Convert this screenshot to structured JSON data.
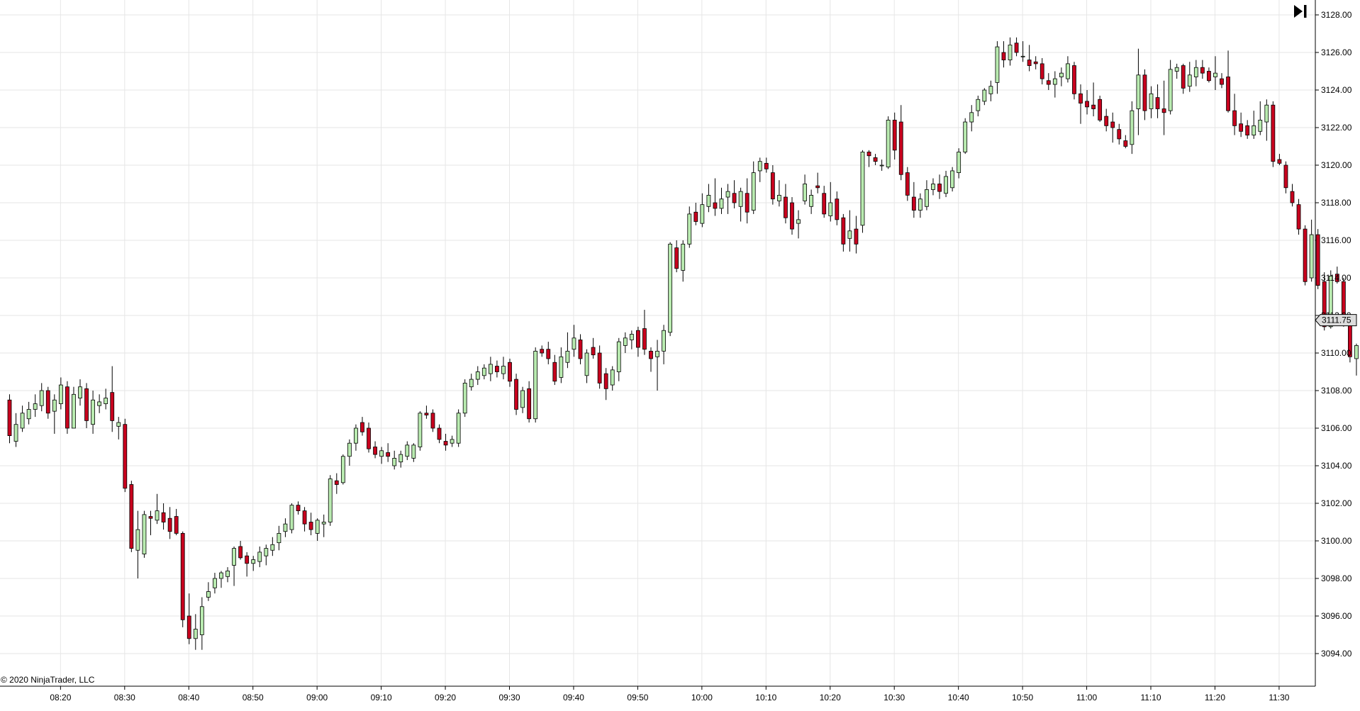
{
  "copyright": "© 2020 NinjaTrader, LLC",
  "current_price_label": "3111.75",
  "controls": {
    "goto_end_icon": "skip-to-end-icon"
  },
  "colors": {
    "up_fill": "#b9ebb0",
    "down_fill": "#c8001e",
    "candle_outline": "#000000",
    "grid": "#e6e6e6",
    "price_marker": "#dcdcdc"
  },
  "chart_data": {
    "type": "candlestick",
    "title": "",
    "xlabel": "",
    "ylabel": "",
    "grid": true,
    "bar_interval": "1 minute",
    "ylim": [
      3093,
      3128.5
    ],
    "y_ticks": [
      "3094.00",
      "3096.00",
      "3098.00",
      "3100.00",
      "3102.00",
      "3104.00",
      "3106.00",
      "3108.00",
      "3110.00",
      "3112.00",
      "3114.00",
      "3116.00",
      "3118.00",
      "3120.00",
      "3122.00",
      "3124.00",
      "3126.00",
      "3128.00"
    ],
    "x_ticks": [
      "08:20",
      "08:30",
      "08:40",
      "08:50",
      "09:00",
      "09:10",
      "09:20",
      "09:30",
      "09:40",
      "09:50",
      "10:00",
      "10:10",
      "10:20",
      "10:30",
      "10:40",
      "10:50",
      "11:00",
      "11:10",
      "11:20",
      "11:30"
    ],
    "first_bar_time": "08:12",
    "ohlc": [
      [
        3107.5,
        3107.8,
        3105.2,
        3105.6
      ],
      [
        3105.3,
        3106.8,
        3105,
        3106.2
      ],
      [
        3106,
        3107.2,
        3105.8,
        3106.8
      ],
      [
        3106.5,
        3107.4,
        3106.2,
        3107
      ],
      [
        3107,
        3107.8,
        3106.6,
        3107.3
      ],
      [
        3107.2,
        3108.4,
        3106.9,
        3108
      ],
      [
        3108,
        3108.2,
        3106.5,
        3106.8
      ],
      [
        3106.9,
        3107.8,
        3105.7,
        3107.5
      ],
      [
        3107.3,
        3108.7,
        3107,
        3108.3
      ],
      [
        3108.2,
        3108.5,
        3105.7,
        3106
      ],
      [
        3106,
        3108.2,
        3106,
        3107.8
      ],
      [
        3107.6,
        3108.6,
        3107.2,
        3108.2
      ],
      [
        3108.1,
        3108.4,
        3106,
        3106.4
      ],
      [
        3106.2,
        3108,
        3105.7,
        3107.5
      ],
      [
        3107.2,
        3107.8,
        3106.8,
        3107.4
      ],
      [
        3107.3,
        3108.1,
        3107,
        3107.6
      ],
      [
        3107.9,
        3109.3,
        3105.8,
        3106.4
      ],
      [
        3106.1,
        3106.6,
        3105.4,
        3106.3
      ],
      [
        3106.2,
        3106.5,
        3102.6,
        3102.8
      ],
      [
        3103,
        3103.2,
        3099.4,
        3099.6
      ],
      [
        3099.5,
        3101.6,
        3098,
        3100.6
      ],
      [
        3099.3,
        3101.6,
        3099.1,
        3101.4
      ],
      [
        3101.3,
        3101.6,
        3100.3,
        3101.2
      ],
      [
        3101.1,
        3102.5,
        3100.9,
        3101.6
      ],
      [
        3101.5,
        3102,
        3100.6,
        3101
      ],
      [
        3101.2,
        3101.8,
        3100.1,
        3100.5
      ],
      [
        3101.3,
        3101.7,
        3100.3,
        3100.4
      ],
      [
        3100.4,
        3100.5,
        3095.4,
        3095.8
      ],
      [
        3096,
        3097.2,
        3094.5,
        3094.8
      ],
      [
        3094.8,
        3096.1,
        3094.2,
        3095.3
      ],
      [
        3095,
        3097,
        3094.2,
        3096.5
      ],
      [
        3097,
        3097.8,
        3096.8,
        3097.3
      ],
      [
        3097.5,
        3098.3,
        3097.2,
        3098
      ],
      [
        3098,
        3098.4,
        3097.5,
        3098.3
      ],
      [
        3098.1,
        3098.6,
        3097.8,
        3098.4
      ],
      [
        3098.7,
        3099.7,
        3097.6,
        3099.6
      ],
      [
        3099.7,
        3100,
        3099,
        3099.1
      ],
      [
        3099.2,
        3099.4,
        3098.1,
        3098.8
      ],
      [
        3098.8,
        3099.2,
        3098.4,
        3099
      ],
      [
        3098.9,
        3099.7,
        3098.6,
        3099.4
      ],
      [
        3099.2,
        3099.8,
        3098.7,
        3099.6
      ],
      [
        3099.5,
        3100.2,
        3099.2,
        3099.8
      ],
      [
        3099.9,
        3100.8,
        3099.5,
        3100.4
      ],
      [
        3100.5,
        3101.2,
        3100.2,
        3100.9
      ],
      [
        3100.6,
        3102,
        3100.4,
        3101.9
      ],
      [
        3101.9,
        3102.1,
        3101.4,
        3101.6
      ],
      [
        3101.6,
        3101.8,
        3100.5,
        3100.9
      ],
      [
        3101,
        3101.5,
        3100.3,
        3100.6
      ],
      [
        3100.4,
        3101.2,
        3100,
        3101.1
      ],
      [
        3100.9,
        3101.4,
        3100.2,
        3101
      ],
      [
        3101,
        3103.5,
        3100.8,
        3103.3
      ],
      [
        3103.2,
        3103.6,
        3102.5,
        3103
      ],
      [
        3103.1,
        3104.6,
        3103,
        3104.5
      ],
      [
        3104.5,
        3105.4,
        3104,
        3105.2
      ],
      [
        3105.2,
        3106.2,
        3104.8,
        3106
      ],
      [
        3106.3,
        3106.6,
        3105.6,
        3105.8
      ],
      [
        3106,
        3106.3,
        3104.7,
        3104.9
      ],
      [
        3105,
        3105.3,
        3104.4,
        3104.6
      ],
      [
        3104.5,
        3105,
        3104.1,
        3104.8
      ],
      [
        3104.7,
        3105.2,
        3104.2,
        3104.5
      ],
      [
        3104,
        3104.8,
        3103.8,
        3104.4
      ],
      [
        3104.2,
        3104.8,
        3103.9,
        3104.6
      ],
      [
        3104.5,
        3105.3,
        3104.3,
        3105.1
      ],
      [
        3104.4,
        3105.2,
        3104.2,
        3105.1
      ],
      [
        3105,
        3106.9,
        3104.8,
        3106.8
      ],
      [
        3106.8,
        3107.2,
        3106.5,
        3106.7
      ],
      [
        3106.8,
        3107,
        3105.8,
        3106
      ],
      [
        3106,
        3106.2,
        3105.2,
        3105.4
      ],
      [
        3105.3,
        3105.7,
        3104.8,
        3105.1
      ],
      [
        3105.2,
        3105.6,
        3105,
        3105.4
      ],
      [
        3105.2,
        3107,
        3105,
        3106.8
      ],
      [
        3106.8,
        3108.6,
        3106.6,
        3108.4
      ],
      [
        3108.2,
        3108.9,
        3108,
        3108.6
      ],
      [
        3108.6,
        3109.3,
        3108.3,
        3109
      ],
      [
        3108.8,
        3109.4,
        3108.6,
        3109.2
      ],
      [
        3108.9,
        3109.8,
        3108.5,
        3109.4
      ],
      [
        3109.3,
        3109.6,
        3108.7,
        3109
      ],
      [
        3108.9,
        3109.8,
        3108.6,
        3109.3
      ],
      [
        3109.5,
        3109.7,
        3108.2,
        3108.5
      ],
      [
        3108.6,
        3108.9,
        3106.7,
        3107
      ],
      [
        3107.1,
        3108.2,
        3106.8,
        3108
      ],
      [
        3108.1,
        3108.5,
        3106.3,
        3106.5
      ],
      [
        3106.5,
        3110.3,
        3106.3,
        3110.1
      ],
      [
        3110.2,
        3110.4,
        3109.8,
        3110
      ],
      [
        3110.2,
        3110.6,
        3109.4,
        3109.7
      ],
      [
        3109.5,
        3109.9,
        3108.3,
        3108.5
      ],
      [
        3108.7,
        3110.3,
        3108.4,
        3109.8
      ],
      [
        3109.5,
        3111.1,
        3109.2,
        3110.1
      ],
      [
        3110.2,
        3111.5,
        3109.8,
        3110.8
      ],
      [
        3110.7,
        3111,
        3109.4,
        3109.7
      ],
      [
        3108.8,
        3110.2,
        3108.4,
        3110
      ],
      [
        3110.3,
        3110.8,
        3109.7,
        3109.9
      ],
      [
        3110,
        3110.4,
        3108.1,
        3108.4
      ],
      [
        3108.9,
        3109.2,
        3107.5,
        3108.1
      ],
      [
        3108.3,
        3109.3,
        3108,
        3109.1
      ],
      [
        3109,
        3110.8,
        3108.5,
        3110.6
      ],
      [
        3110.4,
        3111.1,
        3110,
        3110.8
      ],
      [
        3110.7,
        3111.2,
        3110.2,
        3111
      ],
      [
        3111.2,
        3111.4,
        3109.8,
        3110.3
      ],
      [
        3111.3,
        3112.3,
        3109.9,
        3110.2
      ],
      [
        3110.1,
        3110.3,
        3109,
        3109.7
      ],
      [
        3109.8,
        3110.7,
        3108,
        3110.1
      ],
      [
        3110.1,
        3111.5,
        3109.4,
        3111.2
      ],
      [
        3111.1,
        3115.9,
        3110.9,
        3115.8
      ],
      [
        3115.6,
        3116,
        3114.3,
        3114.5
      ],
      [
        3114.4,
        3116,
        3113.8,
        3115.8
      ],
      [
        3115.8,
        3117.8,
        3115.6,
        3117.4
      ],
      [
        3117.5,
        3118,
        3116.8,
        3117
      ],
      [
        3116.9,
        3118.5,
        3116.7,
        3117.9
      ],
      [
        3117.8,
        3119,
        3117.5,
        3118.4
      ],
      [
        3118,
        3119.3,
        3117.3,
        3117.7
      ],
      [
        3117.7,
        3118.8,
        3117.4,
        3118.2
      ],
      [
        3118.3,
        3119,
        3117.4,
        3118.6
      ],
      [
        3118.5,
        3119.2,
        3117.7,
        3118
      ],
      [
        3117.8,
        3118.8,
        3117,
        3118.6
      ],
      [
        3118.5,
        3119.3,
        3116.9,
        3117.5
      ],
      [
        3117.6,
        3120.2,
        3117.4,
        3119.6
      ],
      [
        3119.7,
        3120.4,
        3119.1,
        3120.2
      ],
      [
        3120.1,
        3120.4,
        3119.6,
        3119.8
      ],
      [
        3119.6,
        3120,
        3117.9,
        3118.2
      ],
      [
        3118.1,
        3119.2,
        3117.8,
        3118.4
      ],
      [
        3118.3,
        3119,
        3116.9,
        3117.2
      ],
      [
        3118,
        3118.3,
        3116.3,
        3116.6
      ],
      [
        3116.9,
        3117.6,
        3116.1,
        3117.1
      ],
      [
        3118.1,
        3119.5,
        3117.9,
        3119
      ],
      [
        3117.8,
        3118.7,
        3117.4,
        3118.4
      ],
      [
        3118.9,
        3119.6,
        3118.5,
        3118.8
      ],
      [
        3118.5,
        3118.9,
        3117.2,
        3117.4
      ],
      [
        3117.3,
        3119.1,
        3117,
        3118
      ],
      [
        3118.2,
        3118.6,
        3116.8,
        3117.1
      ],
      [
        3117.2,
        3117.4,
        3115.4,
        3115.8
      ],
      [
        3116.1,
        3117.6,
        3115.4,
        3116.5
      ],
      [
        3116.6,
        3117.3,
        3115.3,
        3115.8
      ],
      [
        3116.8,
        3120.8,
        3116.4,
        3120.7
      ],
      [
        3120.7,
        3120.8,
        3119.9,
        3120.5
      ],
      [
        3120.4,
        3120.6,
        3120,
        3120.2
      ],
      [
        3120,
        3120.3,
        3119.7,
        3120
      ],
      [
        3119.9,
        3122.6,
        3119.8,
        3122.4
      ],
      [
        3122.4,
        3122.8,
        3120.3,
        3120.8
      ],
      [
        3122.3,
        3123.2,
        3119.2,
        3119.5
      ],
      [
        3119.6,
        3119.9,
        3118.1,
        3118.4
      ],
      [
        3118.3,
        3119.1,
        3117.2,
        3117.6
      ],
      [
        3117.6,
        3118.5,
        3117.2,
        3118.2
      ],
      [
        3117.8,
        3119.2,
        3117.6,
        3118.7
      ],
      [
        3118.7,
        3119.3,
        3118.4,
        3119
      ],
      [
        3119,
        3119.5,
        3118.2,
        3118.6
      ],
      [
        3118.5,
        3119.7,
        3118.3,
        3119.4
      ],
      [
        3118.8,
        3119.9,
        3118.6,
        3119.7
      ],
      [
        3119.6,
        3120.9,
        3119.3,
        3120.7
      ],
      [
        3120.7,
        3122.5,
        3120.6,
        3122.3
      ],
      [
        3122.3,
        3123.2,
        3121.8,
        3122.8
      ],
      [
        3122.9,
        3123.7,
        3122.6,
        3123.5
      ],
      [
        3123.4,
        3124.1,
        3123.2,
        3124
      ],
      [
        3123.8,
        3124.5,
        3123.4,
        3124.2
      ],
      [
        3124.4,
        3126.6,
        3123.8,
        3126.3
      ],
      [
        3126,
        3126.6,
        3125.2,
        3125.6
      ],
      [
        3125.6,
        3126.8,
        3125.3,
        3126.4
      ],
      [
        3126.5,
        3126.8,
        3125.8,
        3126
      ],
      [
        3125.8,
        3126.6,
        3125.5,
        3125.8
      ],
      [
        3125.6,
        3126.4,
        3125,
        3125.3
      ],
      [
        3125.5,
        3125.8,
        3125.1,
        3125.4
      ],
      [
        3125.4,
        3125.7,
        3124.3,
        3124.6
      ],
      [
        3124.5,
        3124.9,
        3124,
        3124.3
      ],
      [
        3124.3,
        3125,
        3123.6,
        3124.6
      ],
      [
        3124.7,
        3125.2,
        3124.2,
        3124.9
      ],
      [
        3124.6,
        3125.8,
        3124.4,
        3125.4
      ],
      [
        3125.3,
        3125.5,
        3123.5,
        3123.8
      ],
      [
        3123.8,
        3124.3,
        3122.2,
        3123.3
      ],
      [
        3123.4,
        3124,
        3122.7,
        3123.1
      ],
      [
        3123.2,
        3124.4,
        3122.6,
        3123
      ],
      [
        3123.5,
        3123.7,
        3122.3,
        3122.4
      ],
      [
        3122.6,
        3123,
        3121.8,
        3122.1
      ],
      [
        3122.3,
        3122.8,
        3121.2,
        3122
      ],
      [
        3121.9,
        3122.2,
        3121.1,
        3121.4
      ],
      [
        3121.3,
        3121.6,
        3120.9,
        3121
      ],
      [
        3121.1,
        3123.4,
        3120.6,
        3122.9
      ],
      [
        3123,
        3126.2,
        3121.6,
        3124.8
      ],
      [
        3124.8,
        3125.1,
        3122.4,
        3122.9
      ],
      [
        3123,
        3124.2,
        3122.5,
        3123.8
      ],
      [
        3123.6,
        3124.3,
        3122.5,
        3123
      ],
      [
        3123,
        3124.5,
        3121.6,
        3122.8
      ],
      [
        3122.9,
        3125.6,
        3122.7,
        3125.1
      ],
      [
        3125,
        3125.4,
        3124.6,
        3125.2
      ],
      [
        3125.3,
        3125.4,
        3123.8,
        3124.1
      ],
      [
        3124.2,
        3125.5,
        3123.9,
        3124.8
      ],
      [
        3124.7,
        3125.6,
        3124.2,
        3125.2
      ],
      [
        3125.2,
        3125.6,
        3124.6,
        3124.9
      ],
      [
        3125,
        3125.2,
        3124.4,
        3124.5
      ],
      [
        3124.7,
        3125.8,
        3124,
        3124.9
      ],
      [
        3124.6,
        3124.9,
        3124.1,
        3124.3
      ],
      [
        3124.7,
        3126.1,
        3122.8,
        3122.9
      ],
      [
        3122.9,
        3123.8,
        3121.6,
        3122.1
      ],
      [
        3122.2,
        3122.8,
        3121.5,
        3121.8
      ],
      [
        3122.1,
        3122.4,
        3121.4,
        3121.6
      ],
      [
        3121.6,
        3122.9,
        3121.4,
        3122.1
      ],
      [
        3121.8,
        3123.4,
        3121.6,
        3122.4
      ],
      [
        3122.3,
        3123.5,
        3121.3,
        3123.2
      ],
      [
        3123.2,
        3123.4,
        3119.9,
        3120.2
      ],
      [
        3120.3,
        3120.6,
        3120,
        3120.1
      ],
      [
        3120,
        3120.2,
        3118.5,
        3118.8
      ],
      [
        3118.6,
        3119,
        3117.8,
        3118
      ],
      [
        3117.9,
        3118.2,
        3116.3,
        3116.6
      ],
      [
        3116.6,
        3116.8,
        3113.6,
        3113.8
      ],
      [
        3114,
        3117.1,
        3113.8,
        3116.3
      ],
      [
        3116.3,
        3116.6,
        3113.4,
        3113.6
      ],
      [
        3113.8,
        3114.3,
        3111.2,
        3111.4
      ],
      [
        3111.4,
        3114.4,
        3111.3,
        3114.1
      ],
      [
        3114.2,
        3114.6,
        3113.7,
        3113.8
      ],
      [
        3113.8,
        3114,
        3111.4,
        3111.6
      ],
      [
        3111.6,
        3111.9,
        3109.5,
        3109.8
      ],
      [
        3109.7,
        3110.5,
        3108.8,
        3110.4
      ],
      [
        3110.4,
        3110.6,
        3108.1,
        3108.5
      ],
      [
        3108.6,
        3110.1,
        3108.2,
        3109.8
      ],
      [
        3109.6,
        3111.8,
        3109.3,
        3111.6
      ],
      [
        3111.4,
        3112.4,
        3108.6,
        3112.1
      ],
      [
        3112.1,
        3113.4,
        3111.4,
        3113.2
      ],
      [
        3113.3,
        3114.1,
        3111.5,
        3113.6
      ],
      [
        3113.6,
        3113.9,
        3111.8,
        3112.3
      ],
      [
        3112.3,
        3112.7,
        3111.4,
        3112.1
      ],
      [
        3112,
        3112.4,
        3108.5,
        3111.6
      ],
      [
        3111.6,
        3111.9,
        3107.5,
        3109.6
      ],
      [
        3109.5,
        3110,
        3107.7,
        3108.2
      ],
      [
        3108.1,
        3109,
        3107.8,
        3108.8
      ],
      [
        3108.4,
        3110.6,
        3108,
        3110.5
      ],
      [
        3110.1,
        3110.8,
        3109.8,
        3110.6
      ],
      [
        3110.6,
        3111.9,
        3110.2,
        3111.6
      ],
      [
        3111.5,
        3113.6,
        3111.2,
        3113.3
      ],
      [
        3113.4,
        3113.6,
        3111.7,
        3112.3
      ],
      [
        3112.4,
        3113.5,
        3111,
        3113.2
      ],
      [
        3113.4,
        3113.6,
        3111.6,
        3111.9
      ]
    ]
  }
}
